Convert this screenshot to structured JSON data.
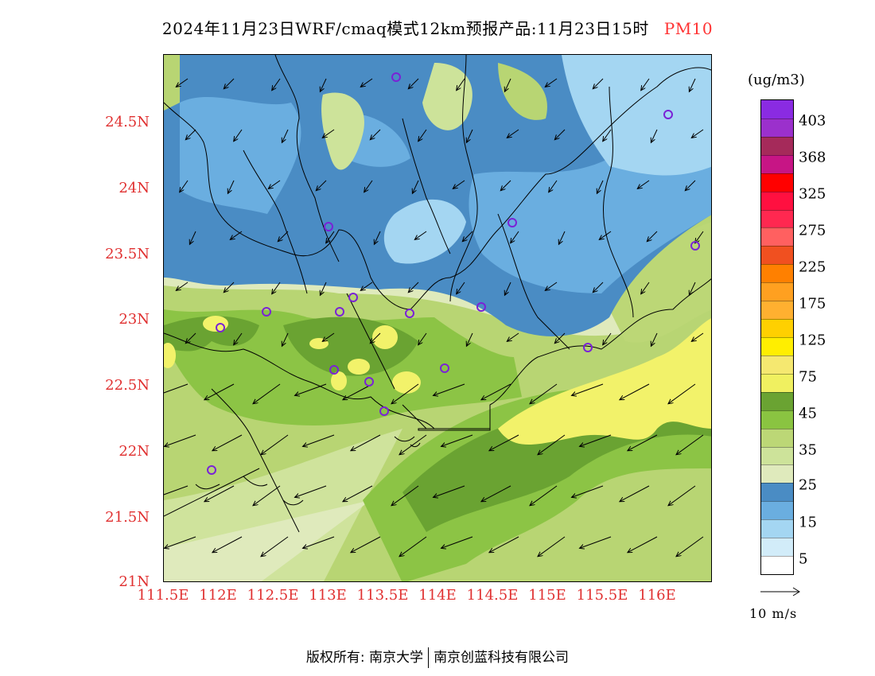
{
  "title": {
    "main": "2024年11月23日WRF/cmaq模式12km预报产品:11月23日15时",
    "variable": "PM10",
    "variable_color": "#ff3333"
  },
  "axes": {
    "lat_labels": [
      "24.5N",
      "24N",
      "23.5N",
      "23N",
      "22.5N",
      "22N",
      "21.5N",
      "21N"
    ],
    "lon_labels": [
      "111.5E",
      "112E",
      "112.5E",
      "113E",
      "113.5E",
      "114E",
      "114.5E",
      "115E",
      "115.5E",
      "116E"
    ],
    "label_color": "#e03030"
  },
  "colorbar": {
    "unit": "(ug/m3)",
    "labels": [
      "403",
      "368",
      "325",
      "275",
      "225",
      "175",
      "125",
      "75",
      "45",
      "35",
      "25",
      "15",
      "5"
    ],
    "colors_top_to_bottom": [
      "#8a2be2",
      "#9b30cc",
      "#a52a5a",
      "#c71585",
      "#ff0000",
      "#ff1040",
      "#ff2850",
      "#ff6060",
      "#f05020",
      "#ff8000",
      "#ffa020",
      "#ffb030",
      "#ffd000",
      "#ffee00",
      "#f5e870",
      "#f0f060",
      "#6aa332",
      "#8ac441",
      "#bcd776",
      "#cde39a",
      "#dfeabc",
      "#4a8cc4",
      "#6aaee0",
      "#a4d6f2",
      "#d2ecf9",
      "#ffffff"
    ]
  },
  "wind_reference": {
    "label": "10 m/s"
  },
  "stations": [
    "station"
  ],
  "footer": {
    "left": "版权所有: 南京大学",
    "right": "南京创蓝科技有限公司"
  }
}
